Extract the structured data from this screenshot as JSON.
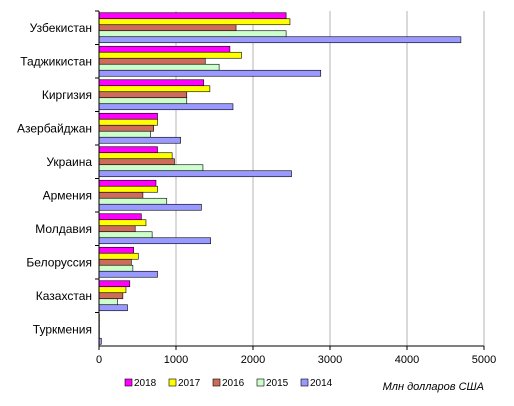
{
  "chart_data": {
    "type": "bar",
    "orientation": "horizontal",
    "categories": [
      "Узбекистан",
      "Таджикистан",
      "Киргизия",
      "Азербайджан",
      "Украина",
      "Армения",
      "Молдавия",
      "Белоруссия",
      "Казахстан",
      "Туркмения"
    ],
    "series": [
      {
        "name": "2018",
        "color": "#ff00ff",
        "values": [
          2430,
          1700,
          1360,
          760,
          760,
          740,
          550,
          450,
          400,
          5
        ]
      },
      {
        "name": "2017",
        "color": "#ffff00",
        "values": [
          2480,
          1850,
          1440,
          760,
          950,
          760,
          610,
          510,
          350,
          5
        ]
      },
      {
        "name": "2016",
        "color": "#cd6c5a",
        "values": [
          1780,
          1380,
          1140,
          710,
          980,
          570,
          470,
          420,
          310,
          5
        ]
      },
      {
        "name": "2015",
        "color": "#ccffcc",
        "values": [
          2430,
          1560,
          1140,
          670,
          1350,
          880,
          690,
          440,
          240,
          5
        ]
      },
      {
        "name": "2014",
        "color": "#9999ff",
        "values": [
          4700,
          2880,
          1740,
          1060,
          2500,
          1330,
          1450,
          760,
          370,
          30
        ]
      }
    ],
    "x_ticks": [
      "0",
      "1000",
      "2000",
      "3000",
      "4000",
      "5000"
    ],
    "xlim": [
      0,
      5000
    ],
    "unit_label": "Млн долларов США",
    "grid": "vertical",
    "legend_position": "bottom"
  }
}
